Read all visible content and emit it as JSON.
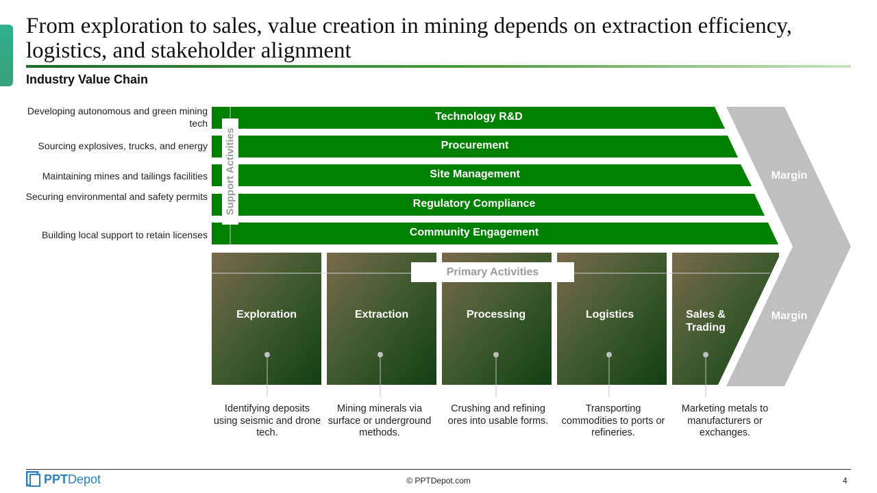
{
  "title": "From exploration to sales, value creation in mining depends on extraction efficiency, logistics, and stakeholder alignment",
  "subtitle": "Industry Value Chain",
  "support": {
    "label": "Support Activities",
    "items": [
      {
        "bar": "Technology R&D",
        "description": "Developing autonomous and green mining tech"
      },
      {
        "bar": "Procurement",
        "description": "Sourcing explosives, trucks, and energy"
      },
      {
        "bar": "Site Management",
        "description": "Maintaining mines and tailings facilities"
      },
      {
        "bar": "Regulatory Compliance",
        "description": "Securing environmental and safety permits"
      },
      {
        "bar": "Community Engagement",
        "description": "Building local support to retain licenses"
      }
    ]
  },
  "primary": {
    "label": "Primary Activities",
    "items": [
      {
        "name": "Exploration",
        "description": "Identifying deposits using seismic and drone tech."
      },
      {
        "name": "Extraction",
        "description": "Mining minerals via surface or underground methods."
      },
      {
        "name": "Processing",
        "description": "Crushing and refining ores into usable forms."
      },
      {
        "name": "Logistics",
        "description": "Transporting commodities to ports or refineries."
      },
      {
        "name": "Sales & Trading",
        "description": "Marketing metals to manufacturers or exchanges."
      }
    ]
  },
  "margin": {
    "top_label": "Margin",
    "bottom_label": "Margin"
  },
  "colors": {
    "bar_green": "#008000",
    "margin_gray": "#bfbfbf",
    "accent": "#2fb08a"
  },
  "footer": {
    "logo_text_bold": "PPT",
    "logo_text": "Depot",
    "copyright": "© PPTDepot.com",
    "page_number": "4"
  }
}
